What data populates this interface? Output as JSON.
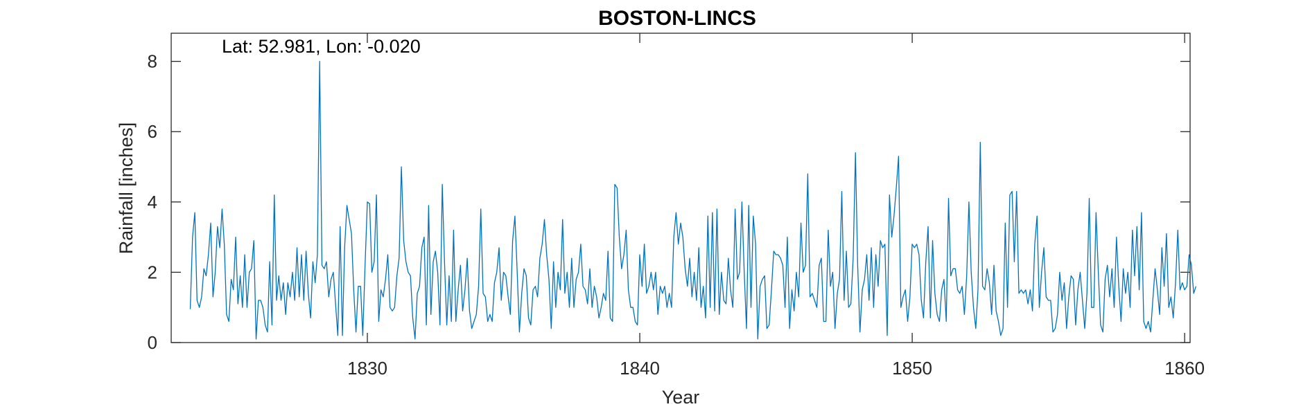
{
  "chart_data": {
    "type": "line",
    "title": "BOSTON-LINCS",
    "xlabel": "Year",
    "ylabel": "Rainfall [inches]",
    "annotation": "Lat: 52.981, Lon: -0.020",
    "xlim": [
      1822.8,
      1860.2
    ],
    "ylim": [
      0,
      8.8
    ],
    "x_ticks": [
      1830,
      1840,
      1850,
      1860
    ],
    "y_ticks": [
      0,
      2,
      4,
      6,
      8
    ],
    "grid": false,
    "series_color": "#0072BD",
    "x_start": 1823.5,
    "x_step": 0.08333,
    "values": [
      0.95,
      3.0,
      3.7,
      1.2,
      1.0,
      1.3,
      2.1,
      1.9,
      2.5,
      3.4,
      1.3,
      2.0,
      3.3,
      2.7,
      3.8,
      2.8,
      0.8,
      0.6,
      1.8,
      1.5,
      3.0,
      1.1,
      1.9,
      1.0,
      2.5,
      1.0,
      2.0,
      2.1,
      2.9,
      0.1,
      1.2,
      1.2,
      1.0,
      0.5,
      0.3,
      2.3,
      0.5,
      4.2,
      1.2,
      1.9,
      1.2,
      1.7,
      0.8,
      1.7,
      1.3,
      2.0,
      1.2,
      2.7,
      1.3,
      2.5,
      1.2,
      2.6,
      1.4,
      0.7,
      2.3,
      1.7,
      2.5,
      8.0,
      2.2,
      2.1,
      2.3,
      1.3,
      1.8,
      2.0,
      1.1,
      0.2,
      3.3,
      0.2,
      2.7,
      3.9,
      3.5,
      3.1,
      1.5,
      0.3,
      1.6,
      1.6,
      0.2,
      2.2,
      4.0,
      3.95,
      2.0,
      2.3,
      4.2,
      0.6,
      1.5,
      1.3,
      1.8,
      2.5,
      1.0,
      0.9,
      1.0,
      1.9,
      2.4,
      5.0,
      2.9,
      2.3,
      2.0,
      1.9,
      0.7,
      0.1,
      1.4,
      1.6,
      2.7,
      3.0,
      0.5,
      3.9,
      0.8,
      2.3,
      2.6,
      2.0,
      0.5,
      4.5,
      2.3,
      0.5,
      1.9,
      0.6,
      3.2,
      0.6,
      1.5,
      2.2,
      0.9,
      1.5,
      2.4,
      0.9,
      0.4,
      0.6,
      0.8,
      1.6,
      3.8,
      1.4,
      1.3,
      0.6,
      0.8,
      0.6,
      1.7,
      2.0,
      2.7,
      1.2,
      2.0,
      1.9,
      1.3,
      0.8,
      2.9,
      3.6,
      2.0,
      0.3,
      1.4,
      2.1,
      1.9,
      0.7,
      0.5,
      1.5,
      1.6,
      1.3,
      2.4,
      2.8,
      3.5,
      2.5,
      1.8,
      0.4,
      2.3,
      1.0,
      2.0,
      1.5,
      3.5,
      1.4,
      2.0,
      1.0,
      2.4,
      1.0,
      1.8,
      2.0,
      2.8,
      1.6,
      1.5,
      1.1,
      2.1,
      1.0,
      1.6,
      1.3,
      0.7,
      1.0,
      1.4,
      1.2,
      2.6,
      0.7,
      0.6,
      4.5,
      4.4,
      3.0,
      2.1,
      2.5,
      3.2,
      1.5,
      1.0,
      1.0,
      0.6,
      0.5,
      2.5,
      1.6,
      2.8,
      1.4,
      1.6,
      2.0,
      1.5,
      2.0,
      0.8,
      1.6,
      1.4,
      1.6,
      1.0,
      1.4,
      1.0,
      3.0,
      3.7,
      2.8,
      3.4,
      3.0,
      2.1,
      1.6,
      2.4,
      1.3,
      2.0,
      1.2,
      2.7,
      1.0,
      1.6,
      0.7,
      3.6,
      1.0,
      3.7,
      0.9,
      3.8,
      0.8,
      2.0,
      1.2,
      1.1,
      2.4,
      1.5,
      1.0,
      3.8,
      1.8,
      2.0,
      4.0,
      2.0,
      0.4,
      3.9,
      1.0,
      3.6,
      2.8,
      0.1,
      1.6,
      1.8,
      1.9,
      0.4,
      0.5,
      1.5,
      2.6,
      2.5,
      2.5,
      2.4,
      2.2,
      1.0,
      3.0,
      0.4,
      1.5,
      0.9,
      2.0,
      1.3,
      3.4,
      2.0,
      2.2,
      4.8,
      1.3,
      1.4,
      1.2,
      1.0,
      2.2,
      2.4,
      0.6,
      0.6,
      3.2,
      1.6,
      2.0,
      0.4,
      1.4,
      1.8,
      4.3,
      1.2,
      2.6,
      1.0,
      1.1,
      2.4,
      5.4,
      2.2,
      0.3,
      1.5,
      1.8,
      2.5,
      1.2,
      2.7,
      1.0,
      2.5,
      1.6,
      2.9,
      2.7,
      2.8,
      0.2,
      4.2,
      3.0,
      3.6,
      4.4,
      5.3,
      1.0,
      1.3,
      1.5,
      0.6,
      1.3,
      2.8,
      2.7,
      2.8,
      2.5,
      1.2,
      0.7,
      2.3,
      3.3,
      0.7,
      2.9,
      1.4,
      0.8,
      0.6,
      1.5,
      1.8,
      0.6,
      4.1,
      1.9,
      2.1,
      2.1,
      1.5,
      1.4,
      1.6,
      0.8,
      1.9,
      4.0,
      2.0,
      1.0,
      0.4,
      1.5,
      5.7,
      1.6,
      1.5,
      2.1,
      1.7,
      0.8,
      2.2,
      0.9,
      0.6,
      0.2,
      0.4,
      3.4,
      1.0,
      4.2,
      4.3,
      2.3,
      4.3,
      1.4,
      1.5,
      1.4,
      1.5,
      1.1,
      1.5,
      0.9,
      2.8,
      3.6,
      1.0,
      2.0,
      2.7,
      1.3,
      1.2,
      1.2,
      0.3,
      0.4,
      0.8,
      2.0,
      1.2,
      1.7,
      0.4,
      1.3,
      1.9,
      1.8,
      0.5,
      1.5,
      2.0,
      1.2,
      0.4,
      1.4,
      4.1,
      1.0,
      1.0,
      3.7,
      2.0,
      0.5,
      0.3,
      1.8,
      2.2,
      1.3,
      2.1,
      1.0,
      3.0,
      1.6,
      0.6,
      2.1,
      1.4,
      2.0,
      1.0,
      3.2,
      1.9,
      3.3,
      1.5,
      3.7,
      0.6,
      0.4,
      0.6,
      0.3,
      1.2,
      2.1,
      1.5,
      0.8,
      2.7,
      1.6,
      3.1,
      1.0,
      1.3,
      0.7,
      1.7,
      3.2,
      1.5,
      1.7,
      1.5,
      1.6,
      2.5,
      2.2,
      1.4,
      1.6
    ]
  }
}
